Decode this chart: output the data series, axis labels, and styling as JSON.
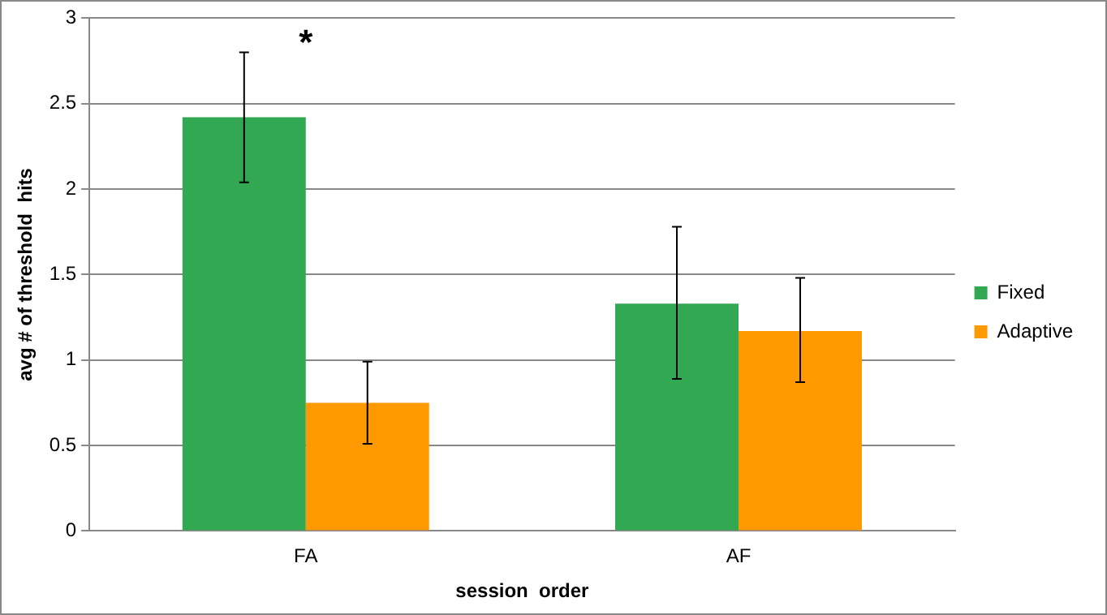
{
  "chart_data": {
    "type": "bar",
    "xlabel": "session  order",
    "ylabel": "avg # of threshold  hits",
    "categories": [
      "FA",
      "AF"
    ],
    "series": [
      {
        "name": "Fixed",
        "color": "#33a853",
        "values": [
          2.42,
          1.33
        ],
        "errors": [
          [
            2.04,
            2.8
          ],
          [
            0.89,
            1.78
          ]
        ]
      },
      {
        "name": "Adaptive",
        "color": "#ff9900",
        "values": [
          0.75,
          1.17
        ],
        "errors": [
          [
            0.51,
            0.99
          ],
          [
            0.87,
            1.48
          ]
        ]
      }
    ],
    "ylim": [
      0,
      3
    ],
    "yticks": [
      0,
      0.5,
      1,
      1.5,
      2,
      2.5,
      3
    ],
    "grid": "y",
    "legend": "right",
    "annotations": [
      "*"
    ]
  }
}
